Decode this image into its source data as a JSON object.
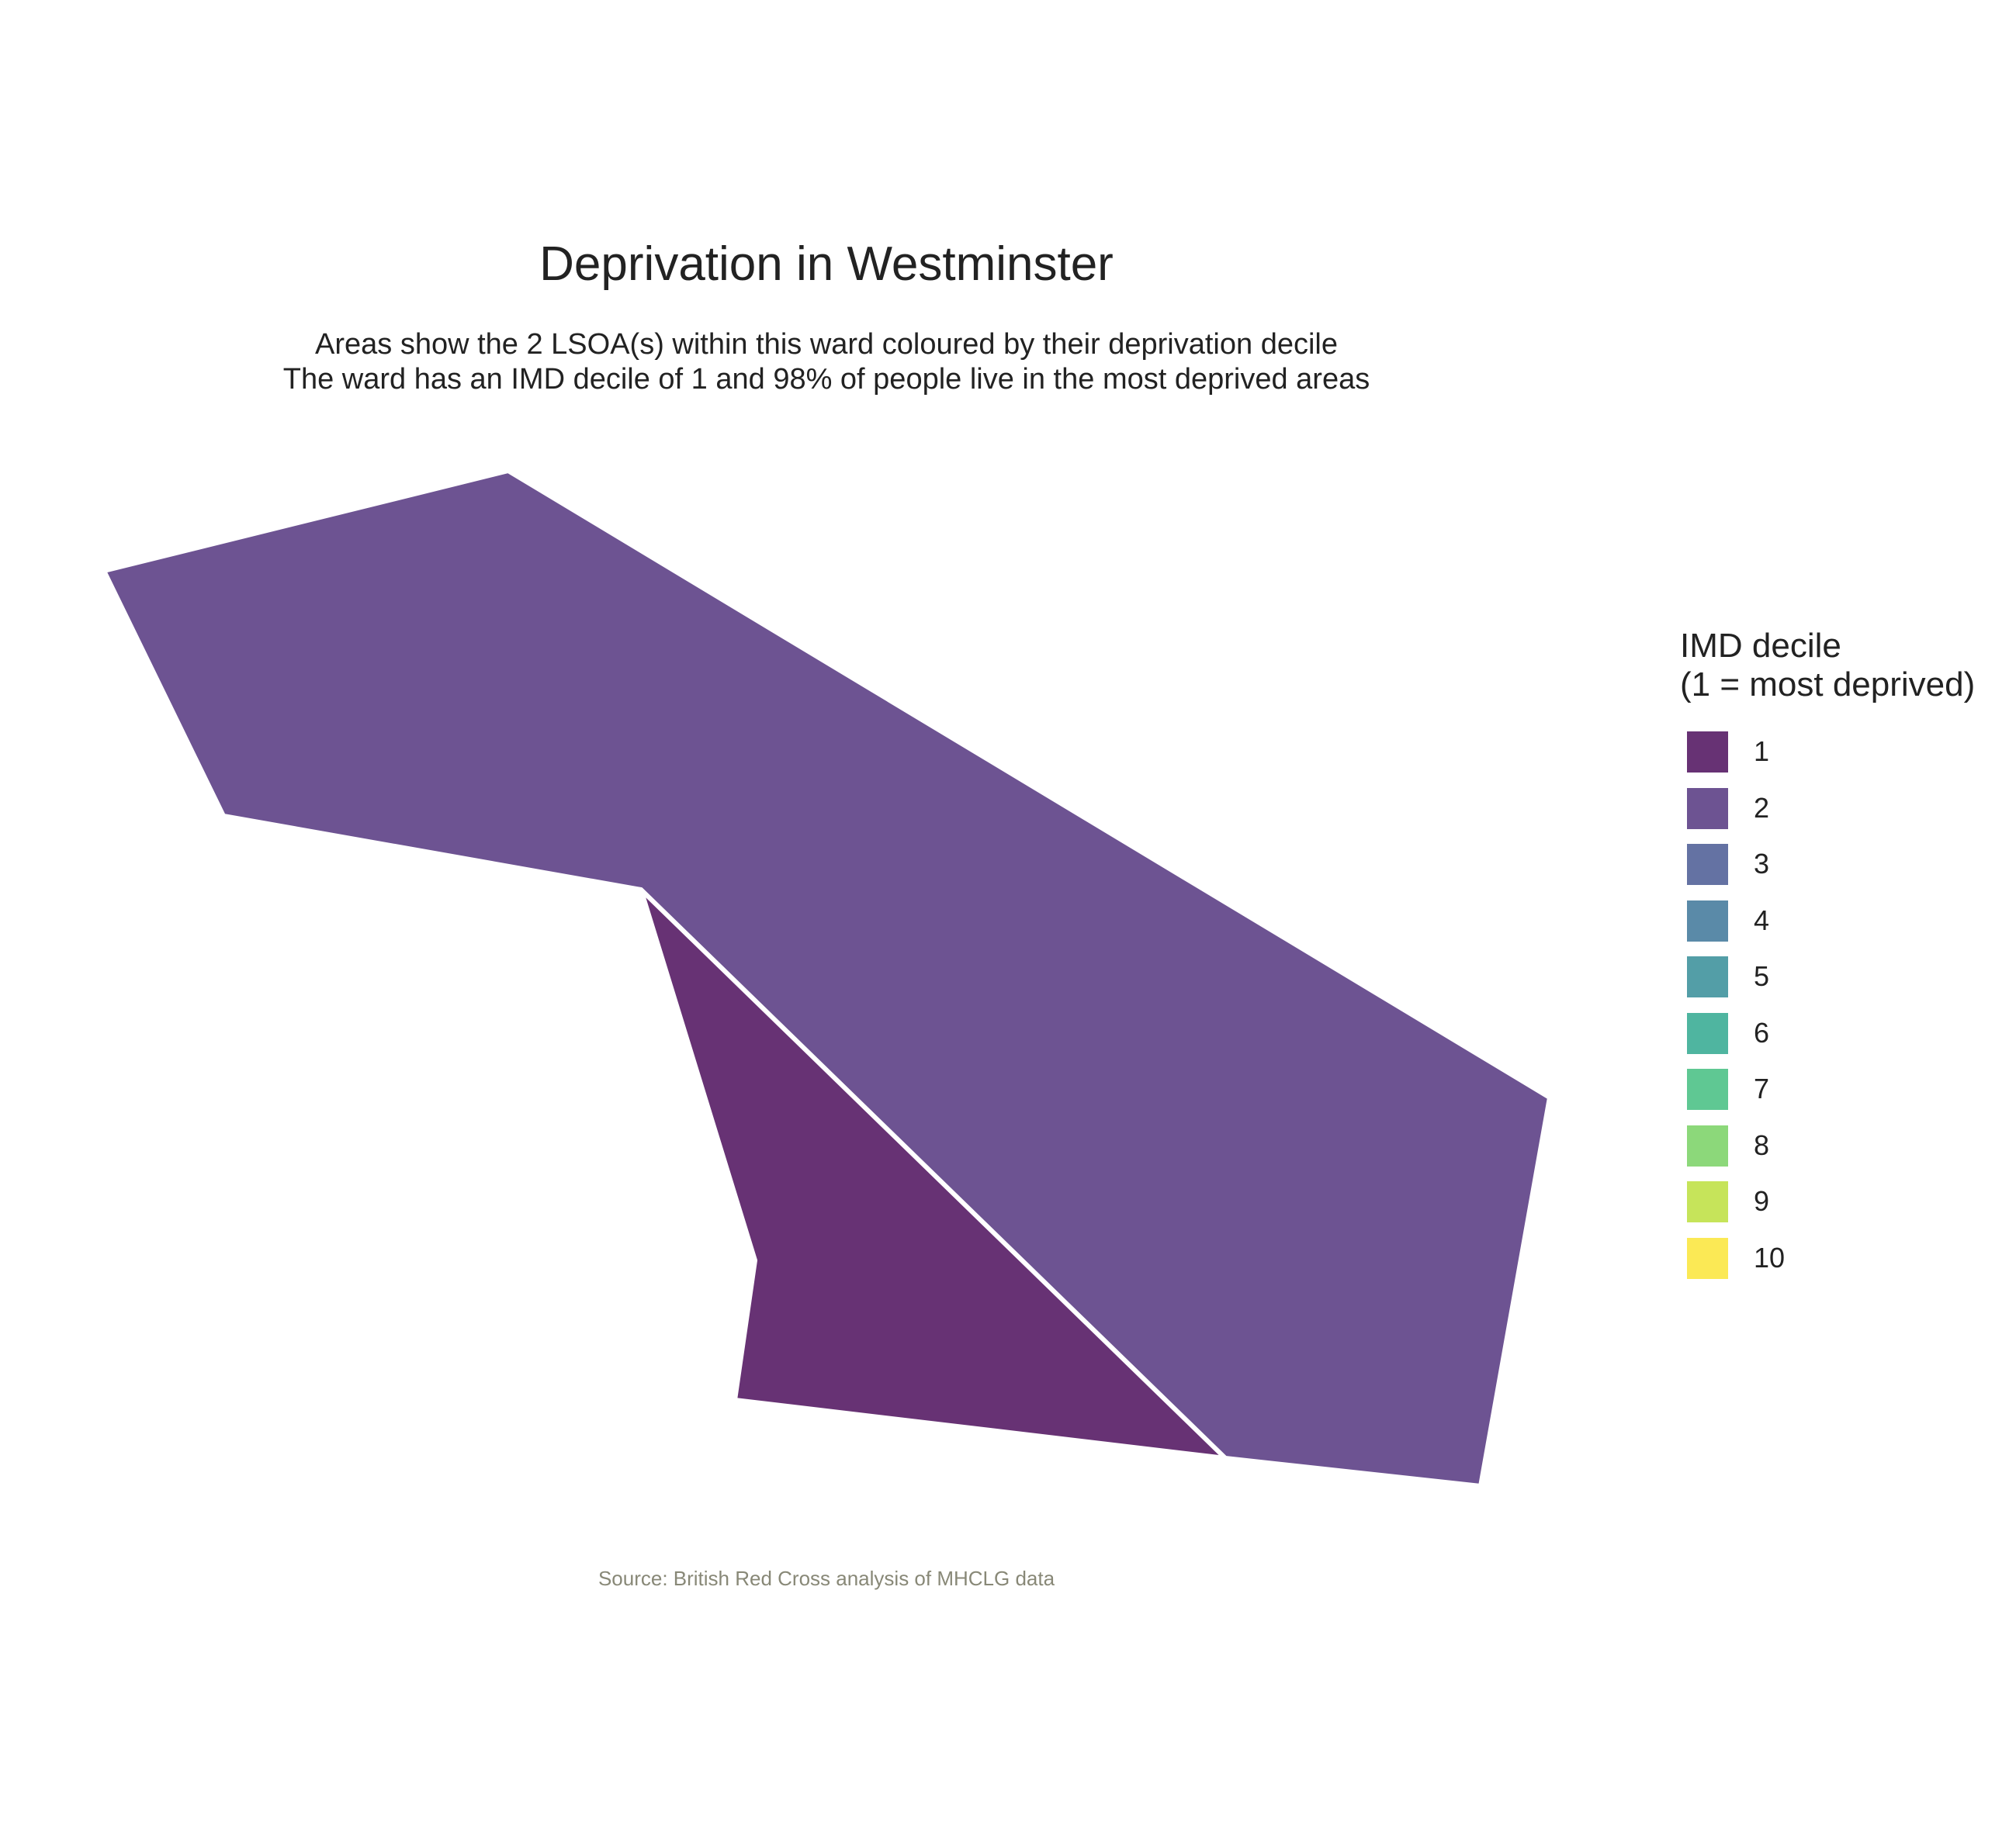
{
  "title": "Deprivation in Westminster",
  "subtitle": {
    "line1": "Areas show the 2 LSOA(s) within this ward coloured by their deprivation decile",
    "line2": "The ward has an IMD decile of 1 and 98% of people live in the most deprived areas"
  },
  "legend": {
    "title_line1": "IMD decile",
    "title_line2": "(1 = most deprived)",
    "items": [
      {
        "label": "1",
        "color": "#673274"
      },
      {
        "label": "2",
        "color": "#6d5392"
      },
      {
        "label": "3",
        "color": "#6472a3"
      },
      {
        "label": "4",
        "color": "#5a8aa8"
      },
      {
        "label": "5",
        "color": "#539ea7"
      },
      {
        "label": "6",
        "color": "#4fb5a0"
      },
      {
        "label": "7",
        "color": "#5fc893"
      },
      {
        "label": "8",
        "color": "#8cd87a"
      },
      {
        "label": "9",
        "color": "#c6e45a"
      },
      {
        "label": "10",
        "color": "#fbe955"
      }
    ]
  },
  "areas": [
    {
      "name": "LSOA with IMD decile 2",
      "decile": 2
    },
    {
      "name": "LSOA with IMD decile 1",
      "decile": 1
    }
  ],
  "source": "Source: British Red Cross analysis of MHCLG data"
}
